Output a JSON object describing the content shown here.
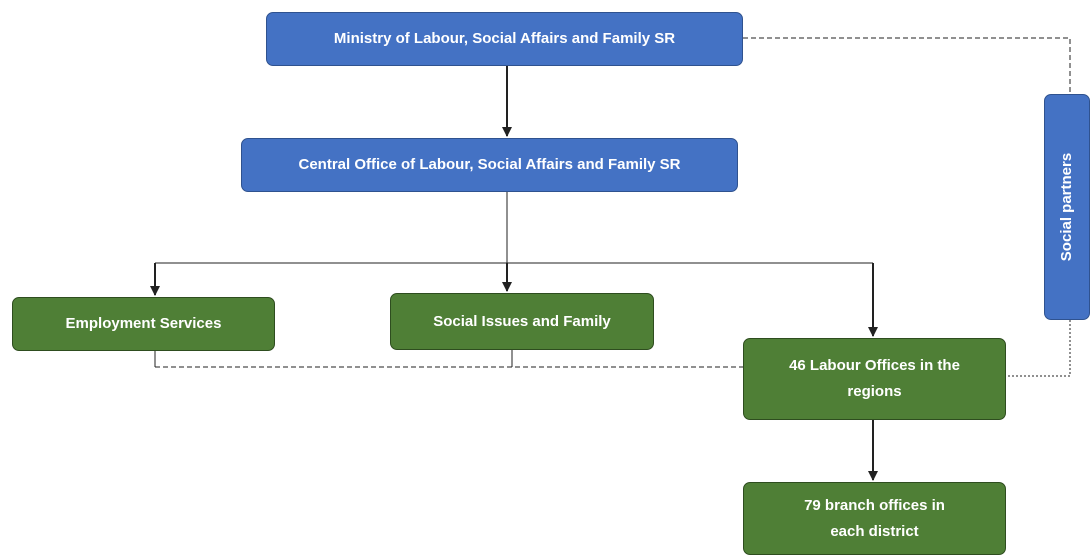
{
  "nodes": [
    {
      "label": "Ministry of Labour, Social Affairs and Family SR"
    },
    {
      "label": "Central Office of Labour, Social Affairs and Family SR"
    },
    {
      "label": "Employment Services"
    },
    {
      "label": "Social Issues and Family"
    },
    {
      "label": "46 Labour Offices in the regions"
    },
    {
      "label": "79 branch offices in each district"
    },
    {
      "label": "Social partners"
    }
  ]
}
